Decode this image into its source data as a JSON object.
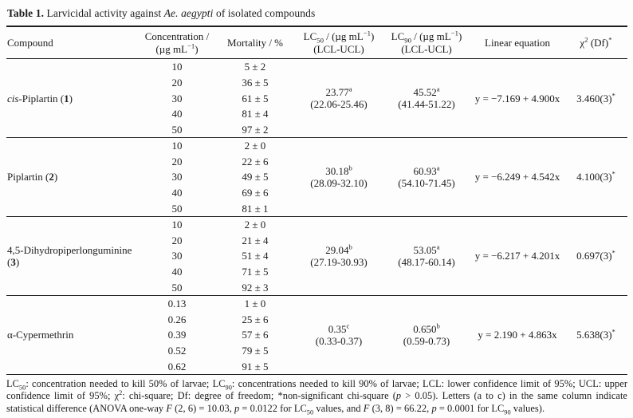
{
  "table": {
    "title": "{b}Table 1.{/b} Larvicidal activity against {i}Ae. aegypti{/i} of isolated compounds",
    "columns": [
      {
        "key": "compound",
        "label": "Compound"
      },
      {
        "key": "concentration",
        "label": "Concentration /{br}(µg mL{sup}−1{/sup})"
      },
      {
        "key": "mortality",
        "label": "Mortality / %"
      },
      {
        "key": "lc50",
        "label": "LC{sub}50{/sub} / (µg mL{sup}−1{/sup}){br}(LCL-UCL)"
      },
      {
        "key": "lc90",
        "label": "LC{sub}90{/sub} / (µg mL{sup}−1{/sup}){br}(LCL-UCL)"
      },
      {
        "key": "equation",
        "label": "Linear equation"
      },
      {
        "key": "chi",
        "label": "χ{sup}2{/sup} (Df){sup}*{/sup}"
      }
    ],
    "blocks": [
      {
        "compound": "{i}cis{/i}-Piplartin ({b}1{/b})",
        "rows": [
          {
            "concentration": "10",
            "mortality": "5 ± 2"
          },
          {
            "concentration": "20",
            "mortality": "36 ± 5"
          },
          {
            "concentration": "30",
            "mortality": "61 ± 5"
          },
          {
            "concentration": "40",
            "mortality": "81 ± 4"
          },
          {
            "concentration": "50",
            "mortality": "97 ± 2"
          }
        ],
        "lc50": "23.77{sup}a{/sup}{br}(22.06-25.46)",
        "lc90": "45.52{sup}a{/sup}{br}(41.44-51.22)",
        "equation": "y = −7.169 + 4.900x",
        "chi": "3.460(3){sup}*{/sup}"
      },
      {
        "compound": "Piplartin ({b}2{/b})",
        "rows": [
          {
            "concentration": "10",
            "mortality": "2 ± 0"
          },
          {
            "concentration": "20",
            "mortality": "22 ± 6"
          },
          {
            "concentration": "30",
            "mortality": "49 ± 5"
          },
          {
            "concentration": "40",
            "mortality": "69 ± 6"
          },
          {
            "concentration": "50",
            "mortality": "81 ± 1"
          }
        ],
        "lc50": "30.18{sup}b{/sup}{br}(28.09-32.10)",
        "lc90": "60.93{sup}a{/sup}{br}(54.10-71.45)",
        "equation": "y = −6.249 + 4.542x",
        "chi": "4.100(3){sup}*{/sup}"
      },
      {
        "compound": "4,5-Dihydropiperlonguminine ({b}3{/b})",
        "rows": [
          {
            "concentration": "10",
            "mortality": "2 ± 0"
          },
          {
            "concentration": "20",
            "mortality": "21 ± 4"
          },
          {
            "concentration": "30",
            "mortality": "51 ± 4"
          },
          {
            "concentration": "40",
            "mortality": "71 ± 5"
          },
          {
            "concentration": "50",
            "mortality": "92 ± 3"
          }
        ],
        "lc50": "29.04{sup}b{/sup}{br}(27.19-30.93)",
        "lc90": "53.05{sup}a{/sup}{br}(48.17-60.14)",
        "equation": "y = −6.217 + 4.201x",
        "chi": "0.697(3){sup}*{/sup}"
      },
      {
        "compound": "α-Cypermethrin",
        "rows": [
          {
            "concentration": "0.13",
            "mortality": "1 ± 0"
          },
          {
            "concentration": "0.26",
            "mortality": "25 ± 6"
          },
          {
            "concentration": "0.39",
            "mortality": "57 ± 6"
          },
          {
            "concentration": "0.52",
            "mortality": "79 ± 5"
          },
          {
            "concentration": "0.62",
            "mortality": "91 ± 5"
          }
        ],
        "lc50": "0.35{sup}c{/sup}{br}(0.33-0.37)",
        "lc90": "0.650{sup}b{/sup}{br}(0.59-0.73)",
        "equation": "y = 2.190 + 4.863x",
        "chi": "5.638(3){sup}*{/sup}"
      }
    ],
    "footnote": "LC{sub}50{/sub}: concentration needed to kill 50% of larvae; LC{sub}90{/sub}: concentrations needed to kill 90% of larvae; LCL: lower confidence limit of 95%; UCL: upper confidence limit of 95%; χ{sup}2{/sup}: chi-square; Df: degree of freedom; *non-significant chi-square ({i}p{/i} > 0.05). Letters (a to c) in the same column indicate statistical difference (ANOVA one-way {i}F{/i} (2, 6) = 10.03, {i}p{/i} = 0.0122 for LC{sub}50{/sub} values, and {i}F{/i} (3, 8) = 66.22, {i}p{/i} = 0.0001 for LC{sub}90{/sub} values)."
  }
}
